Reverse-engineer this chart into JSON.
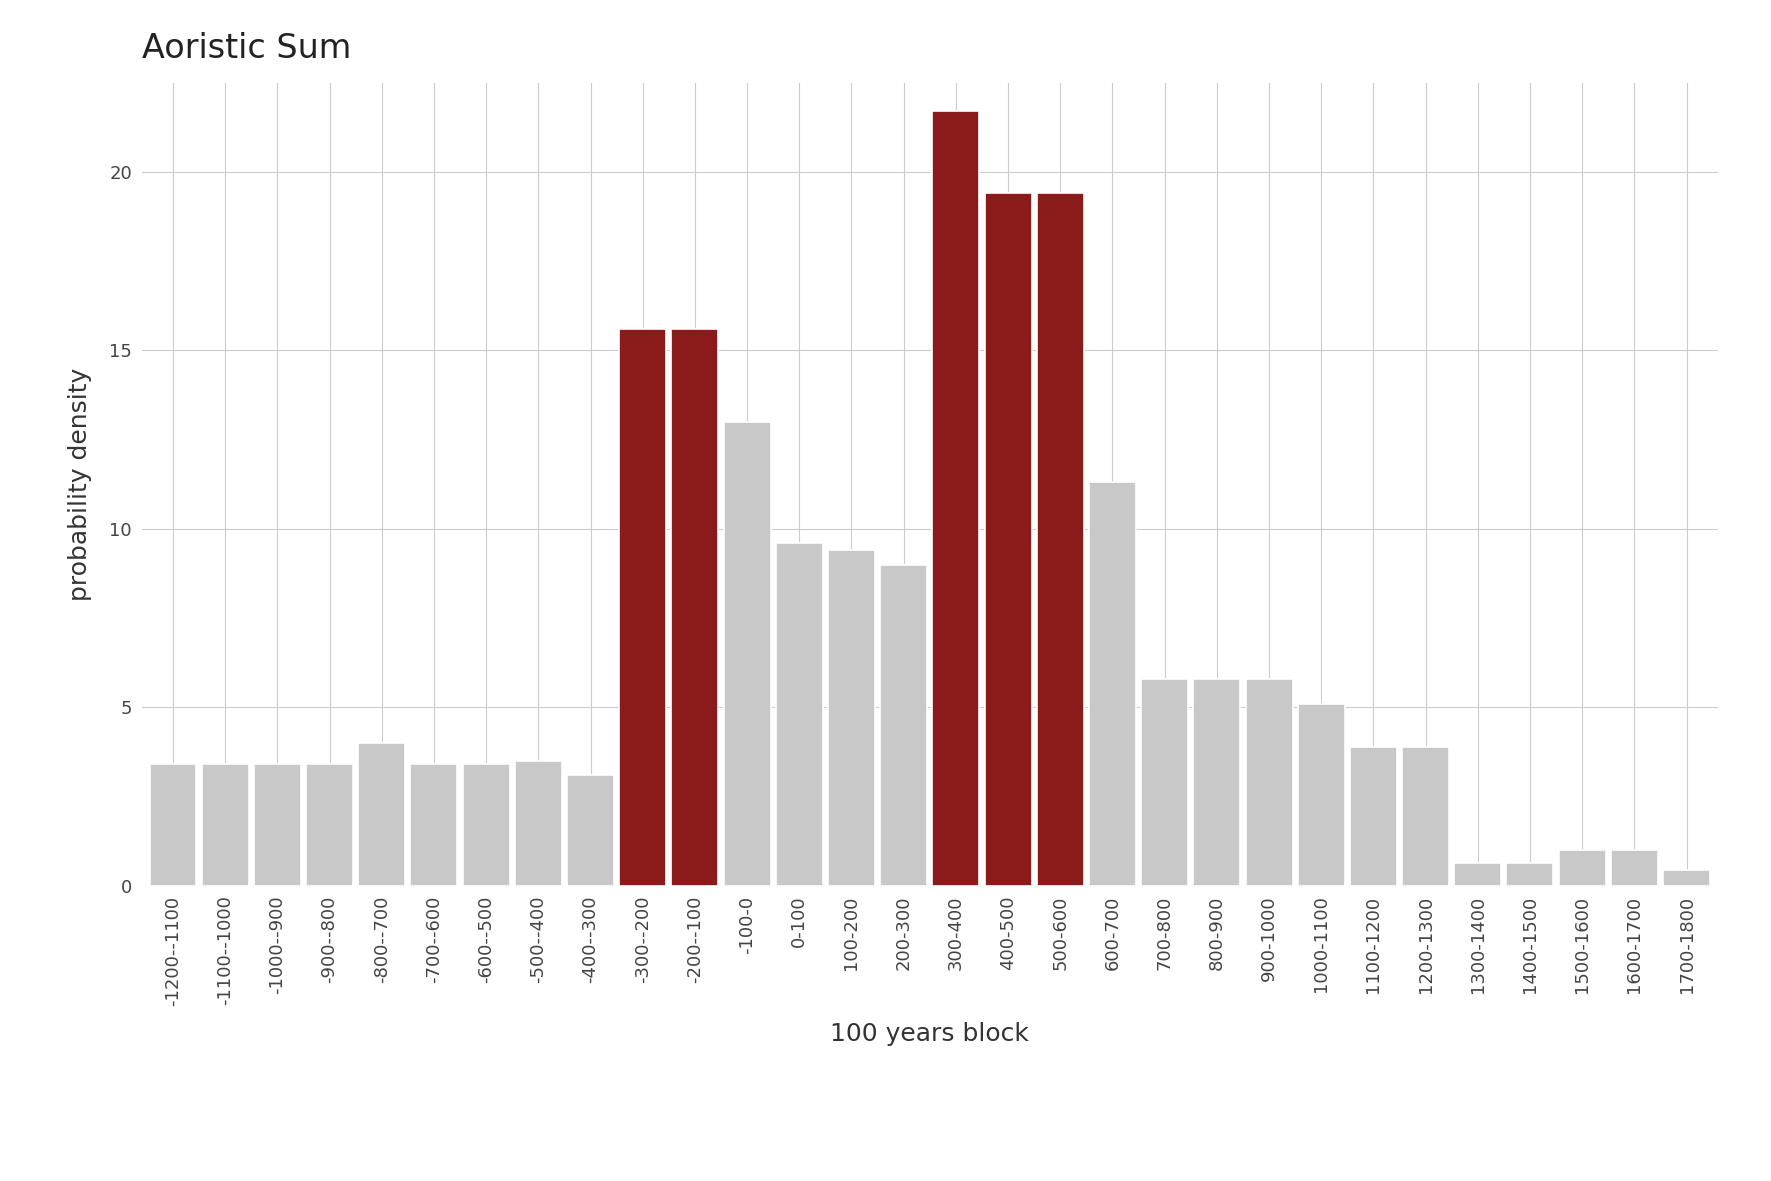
{
  "title": "Aoristic Sum",
  "xlabel": "100 years block",
  "ylabel": "probability density",
  "categories": [
    "-1200--1100",
    "-1100--1000",
    "-1000--900",
    "-900--800",
    "-800--700",
    "-700--600",
    "-600--500",
    "-500--400",
    "-400--300",
    "-300--200",
    "-200--100",
    "-100-0",
    "0-100",
    "100-200",
    "200-300",
    "300-400",
    "400-500",
    "500-600",
    "600-700",
    "700-800",
    "800-900",
    "900-1000",
    "1000-1100",
    "1100-1200",
    "1200-1300",
    "1300-1400",
    "1400-1500",
    "1500-1600",
    "1600-1700",
    "1700-1800"
  ],
  "values": [
    3.4,
    3.4,
    3.4,
    3.4,
    4.0,
    3.4,
    3.4,
    3.5,
    3.1,
    15.6,
    15.6,
    13.0,
    9.6,
    9.4,
    9.0,
    21.7,
    19.4,
    19.4,
    11.3,
    5.8,
    5.8,
    5.8,
    5.1,
    3.9,
    3.9,
    0.65,
    0.65,
    1.0,
    1.0,
    0.45
  ],
  "colors": [
    "#c8c8c8",
    "#c8c8c8",
    "#c8c8c8",
    "#c8c8c8",
    "#c8c8c8",
    "#c8c8c8",
    "#c8c8c8",
    "#c8c8c8",
    "#c8c8c8",
    "#8b1a1a",
    "#8b1a1a",
    "#c8c8c8",
    "#c8c8c8",
    "#c8c8c8",
    "#c8c8c8",
    "#8b1a1a",
    "#8b1a1a",
    "#8b1a1a",
    "#c8c8c8",
    "#c8c8c8",
    "#c8c8c8",
    "#c8c8c8",
    "#c8c8c8",
    "#c8c8c8",
    "#c8c8c8",
    "#c8c8c8",
    "#c8c8c8",
    "#c8c8c8",
    "#c8c8c8",
    "#c8c8c8"
  ],
  "ylim": [
    0,
    22.5
  ],
  "yticks": [
    0,
    5,
    10,
    15,
    20
  ],
  "background_color": "#ffffff",
  "panel_background": "#ffffff",
  "grid_color": "#cccccc",
  "title_fontsize": 24,
  "axis_label_fontsize": 18,
  "tick_fontsize": 13
}
